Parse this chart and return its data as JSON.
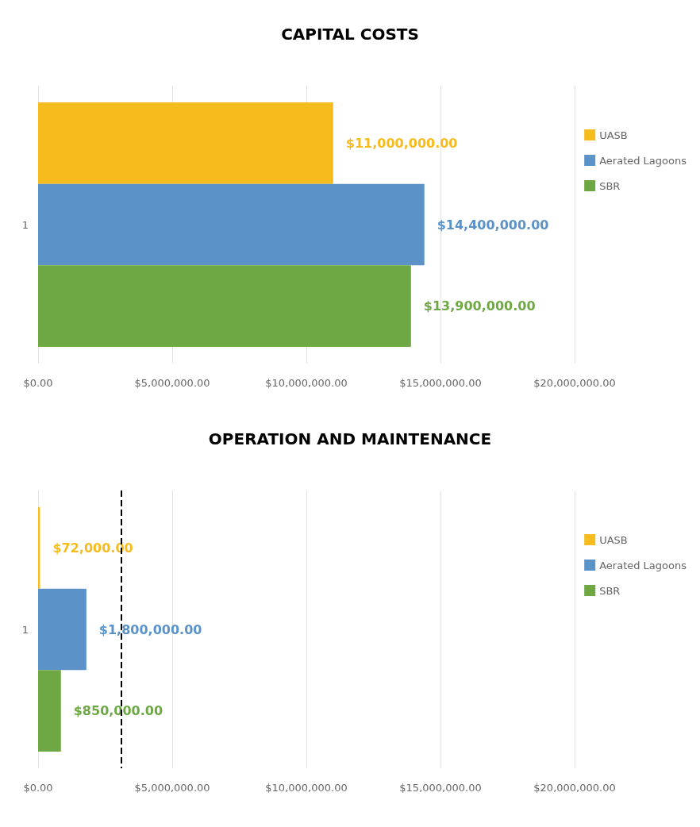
{
  "chart_data": [
    {
      "type": "bar",
      "title": "CAPITAL COSTS",
      "orientation": "horizontal",
      "categories": [
        "1"
      ],
      "series": [
        {
          "name": "UASB",
          "color": "#f6bb1c",
          "values": [
            11000000
          ],
          "value_labels": [
            "$11,000,000.00"
          ]
        },
        {
          "name": "Aerated Lagoons",
          "color": "#5b93c9",
          "values": [
            14400000
          ],
          "value_labels": [
            "$14,400,000.00"
          ]
        },
        {
          "name": "SBR",
          "color": "#6ea845",
          "values": [
            13900000
          ],
          "value_labels": [
            "$13,900,000.00"
          ]
        }
      ],
      "xlim": [
        0,
        20000000
      ],
      "xticks": [
        {
          "value": 0,
          "label": "$0.00"
        },
        {
          "value": 5000000,
          "label": "$5,000,000.00"
        },
        {
          "value": 10000000,
          "label": "$10,000,000.00"
        },
        {
          "value": 15000000,
          "label": "$15,000,000.00"
        },
        {
          "value": 20000000,
          "label": "$20,000,000.00"
        }
      ],
      "grid": "x",
      "legend": "right"
    },
    {
      "type": "bar",
      "title": "OPERATION AND MAINTENANCE",
      "orientation": "horizontal",
      "categories": [
        "1"
      ],
      "series": [
        {
          "name": "UASB",
          "color": "#f6bb1c",
          "values": [
            72000
          ],
          "value_labels": [
            "$72,000.00"
          ]
        },
        {
          "name": "Aerated Lagoons",
          "color": "#5b93c9",
          "values": [
            1800000
          ],
          "value_labels": [
            "$1,800,000.00"
          ]
        },
        {
          "name": "SBR",
          "color": "#6ea845",
          "values": [
            850000
          ],
          "value_labels": [
            "$850,000.00"
          ]
        }
      ],
      "xlim": [
        0,
        20000000
      ],
      "xticks": [
        {
          "value": 0,
          "label": "$0.00"
        },
        {
          "value": 5000000,
          "label": "$5,000,000.00"
        },
        {
          "value": 10000000,
          "label": "$10,000,000.00"
        },
        {
          "value": 15000000,
          "label": "$15,000,000.00"
        },
        {
          "value": 20000000,
          "label": "$20,000,000.00"
        }
      ],
      "ref_lines": [
        {
          "axis": "x",
          "value": 3100000,
          "color": "#000000",
          "line_style": "dashed"
        }
      ],
      "grid": "x",
      "legend": "right"
    }
  ]
}
